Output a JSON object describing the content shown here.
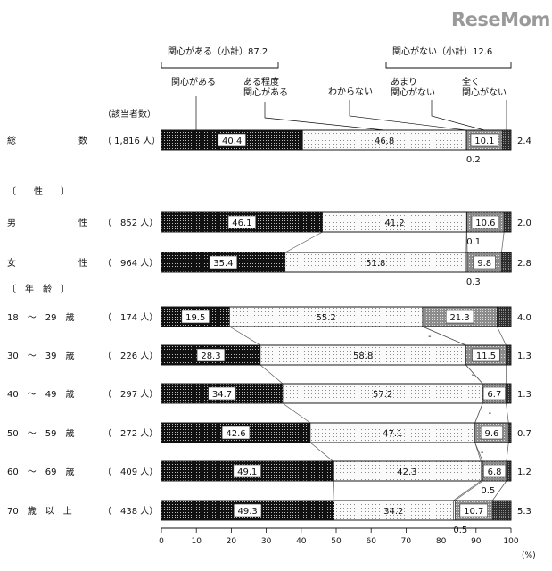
{
  "brand": "ReseMom",
  "chart_data": {
    "type": "bar",
    "orientation": "horizontal",
    "stacked": true,
    "unit": "(%)",
    "x_ticks": [
      "0",
      "10",
      "20",
      "30",
      "40",
      "50",
      "60",
      "70",
      "80",
      "90",
      "100"
    ],
    "xlim": [
      0,
      100
    ],
    "count_header": "（該当者数）",
    "group_header_top": "関心がある（小計）87.2",
    "group_header_bottom": "関心がない（小計）12.6",
    "series": [
      {
        "name": "関心がある",
        "color": "#111111"
      },
      {
        "name": "ある程度\n関心がある",
        "color": "#f4f4f4"
      },
      {
        "name": "わからない",
        "color": "#ffffff"
      },
      {
        "name": "あまり\n関心がない",
        "color": "#8c8c8c"
      },
      {
        "name": "全く\n関心がない",
        "color": "#3a3a3a"
      }
    ],
    "section_headers": [
      {
        "label": "〔　　性　　〕",
        "before_row": 1
      },
      {
        "label": "〔　年　齢　〕",
        "before_row": 3
      }
    ],
    "rows": [
      {
        "label": "総　　　　　　　数",
        "count": "（ 1,816 人）",
        "values": [
          40.4,
          46.8,
          0.2,
          10.1,
          2.4
        ],
        "labels": [
          "40.4",
          "46.8",
          "0.2",
          "10.1",
          "2.4"
        ]
      },
      {
        "label": "男　　　　　　　性",
        "count": "（　852 人）",
        "values": [
          46.1,
          41.2,
          0.1,
          10.6,
          2.0
        ],
        "labels": [
          "46.1",
          "41.2",
          "0.1",
          "10.6",
          "2.0"
        ]
      },
      {
        "label": "女　　　　　　　性",
        "count": "（　964 人）",
        "values": [
          35.4,
          51.8,
          0.3,
          9.8,
          2.8
        ],
        "labels": [
          "35.4",
          "51.8",
          "0.3",
          "9.8",
          "2.8"
        ]
      },
      {
        "label": "18　～　29　歳",
        "count": "（　174 人）",
        "values": [
          19.5,
          55.2,
          0.0,
          21.3,
          4.0
        ],
        "labels": [
          "19.5",
          "55.2",
          "-",
          "21.3",
          "4.0"
        ]
      },
      {
        "label": "30　～　39　歳",
        "count": "（　226 人）",
        "values": [
          28.3,
          58.8,
          0.0,
          11.5,
          1.3
        ],
        "labels": [
          "28.3",
          "58.8",
          "-",
          "11.5",
          "1.3"
        ]
      },
      {
        "label": "40　～　49　歳",
        "count": "（　297 人）",
        "values": [
          34.7,
          57.2,
          0.0,
          6.7,
          1.3
        ],
        "labels": [
          "34.7",
          "57.2",
          "-",
          "6.7",
          "1.3"
        ]
      },
      {
        "label": "50　～　59　歳",
        "count": "（　272 人）",
        "values": [
          42.6,
          47.1,
          0.0,
          9.6,
          0.7
        ],
        "labels": [
          "42.6",
          "47.1",
          "-",
          "9.6",
          "0.7"
        ]
      },
      {
        "label": "60　～　69　歳",
        "count": "（　409 人）",
        "values": [
          49.1,
          42.3,
          0.5,
          6.8,
          1.2
        ],
        "labels": [
          "49.1",
          "42.3",
          "0.5",
          "6.8",
          "1.2"
        ]
      },
      {
        "label": "70　歳　以　上",
        "count": "（　438 人）",
        "values": [
          49.3,
          34.2,
          0.5,
          10.7,
          5.3
        ],
        "labels": [
          "49.3",
          "34.2",
          "0.5",
          "10.7",
          "5.3"
        ]
      }
    ]
  }
}
